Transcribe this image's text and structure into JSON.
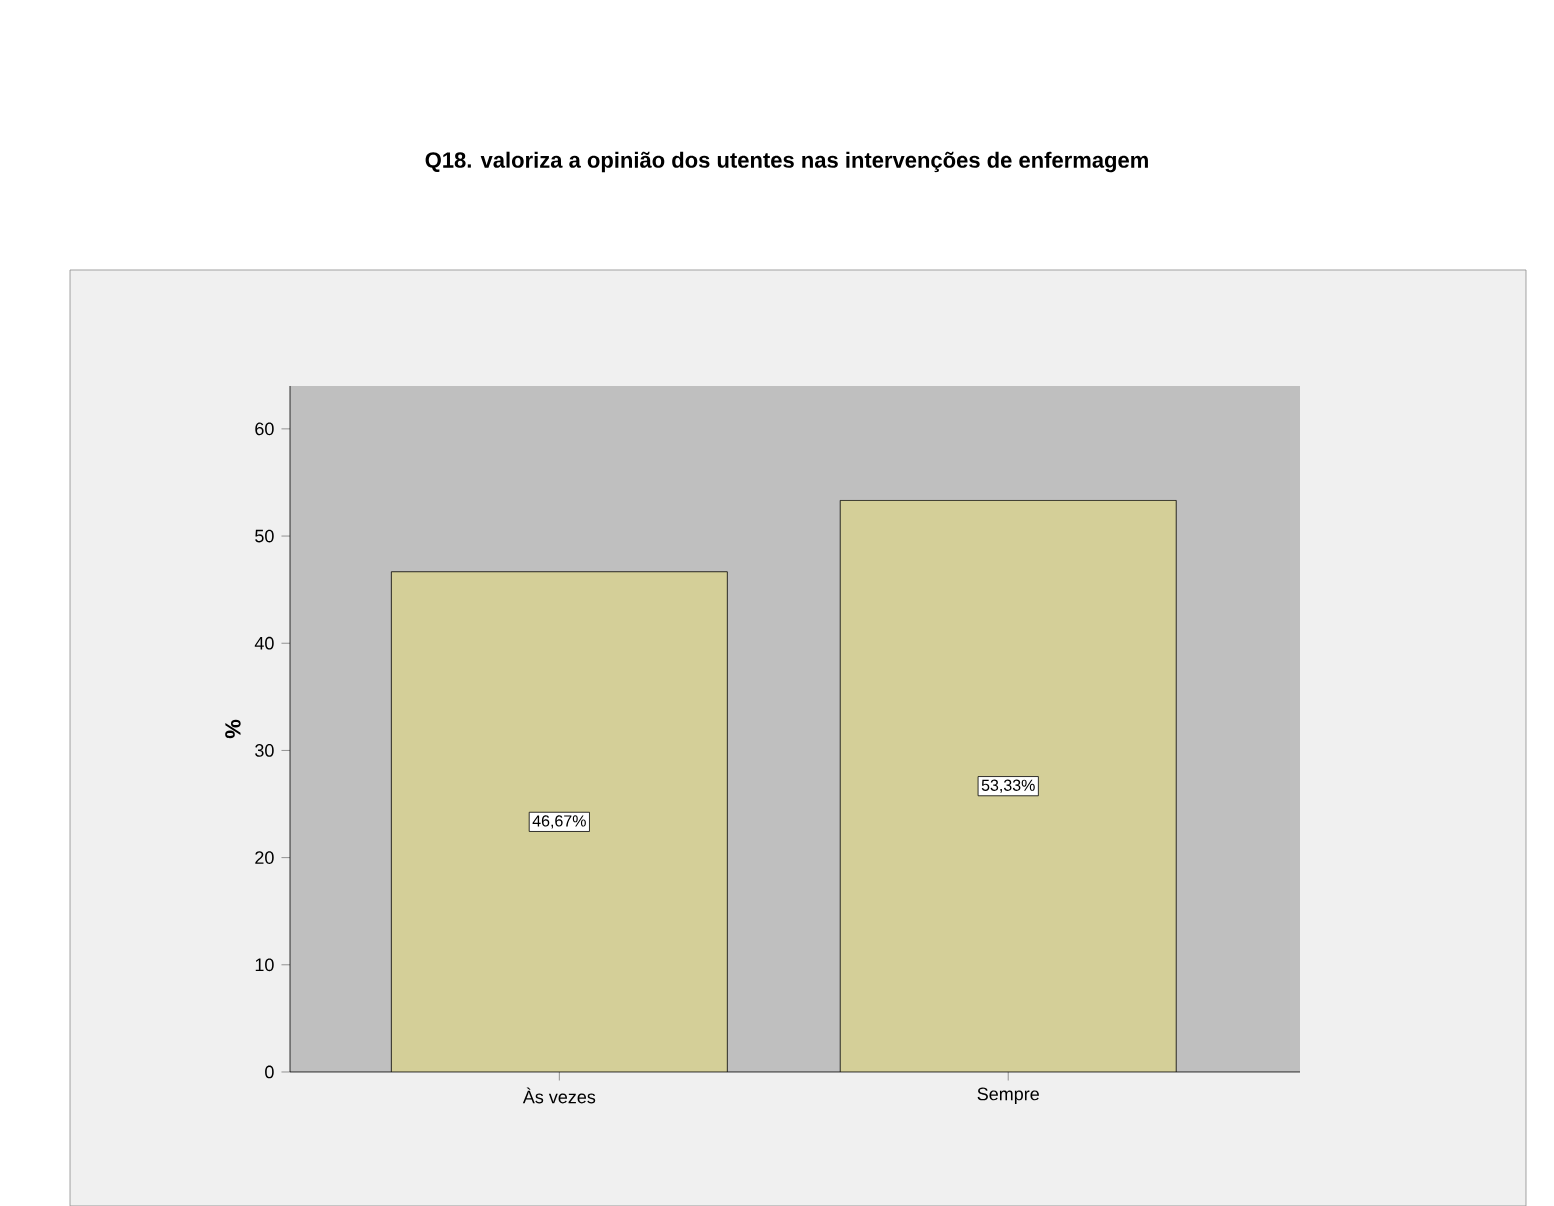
{
  "chart_data": {
    "type": "bar",
    "title": "Q18. valoriza a opinião dos utentes nas intervenções de enfermagem",
    "ylabel": "%",
    "categories": [
      "Às vezes",
      "Sempre"
    ],
    "values": [
      46.67,
      53.33
    ],
    "value_labels": [
      "46,67%",
      "53,33%"
    ],
    "color": "#d4cf98",
    "ylim": [
      0,
      64
    ],
    "yticks": [
      0,
      10,
      20,
      30,
      40,
      50,
      60
    ],
    "grid": false
  }
}
